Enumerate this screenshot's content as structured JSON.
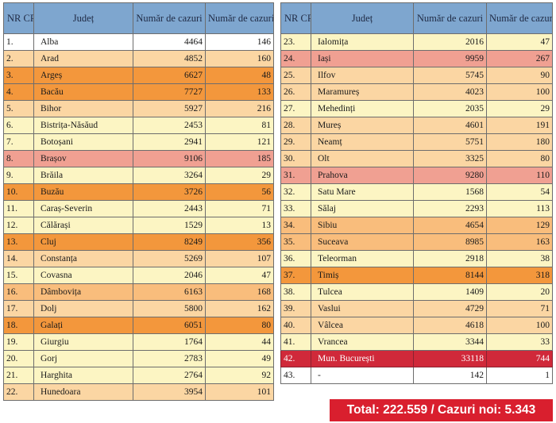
{
  "headers": {
    "nr": "NR CRT.",
    "judet": "Județ",
    "cazuri": "Număr de cazuri",
    "cazuri_noi": "Număr de cazuri noi"
  },
  "left_rows": [
    {
      "nr": "1.",
      "judet": "Alba",
      "cazuri": "4464",
      "noi": "146",
      "color": "peach"
    },
    {
      "nr": "2.",
      "judet": "Arad",
      "cazuri": "4852",
      "noi": "160",
      "color": "light-orange"
    },
    {
      "nr": "3.",
      "judet": "Argeș",
      "cazuri": "6627",
      "noi": "48",
      "color": "dark-orange"
    },
    {
      "nr": "4.",
      "judet": "Bacău",
      "cazuri": "7727",
      "noi": "133",
      "color": "dark-orange"
    },
    {
      "nr": "5.",
      "judet": "Bihor",
      "cazuri": "5927",
      "noi": "216",
      "color": "light-orange"
    },
    {
      "nr": "6.",
      "judet": "Bistrița-Năsăud",
      "cazuri": "2453",
      "noi": "81",
      "color": "pale-yellow"
    },
    {
      "nr": "7.",
      "judet": "Botoșani",
      "cazuri": "2941",
      "noi": "121",
      "color": "pale-yellow"
    },
    {
      "nr": "8.",
      "judet": "Brașov",
      "cazuri": "9106",
      "noi": "185",
      "color": "salmon"
    },
    {
      "nr": "9.",
      "judet": "Brăila",
      "cazuri": "3264",
      "noi": "29",
      "color": "pale-yellow"
    },
    {
      "nr": "10.",
      "judet": "Buzău",
      "cazuri": "3726",
      "noi": "56",
      "color": "dark-orange"
    },
    {
      "nr": "11.",
      "judet": "Caraș-Severin",
      "cazuri": "2443",
      "noi": "71",
      "color": "pale-yellow"
    },
    {
      "nr": "12.",
      "judet": "Călărași",
      "cazuri": "1529",
      "noi": "13",
      "color": "pale-yellow"
    },
    {
      "nr": "13.",
      "judet": "Cluj",
      "cazuri": "8249",
      "noi": "356",
      "color": "dark-orange"
    },
    {
      "nr": "14.",
      "judet": "Constanța",
      "cazuri": "5269",
      "noi": "107",
      "color": "light-orange"
    },
    {
      "nr": "15.",
      "judet": "Covasna",
      "cazuri": "2046",
      "noi": "47",
      "color": "pale-yellow"
    },
    {
      "nr": "16.",
      "judet": "Dâmbovița",
      "cazuri": "6163",
      "noi": "168",
      "color": "mid-orange"
    },
    {
      "nr": "17.",
      "judet": "Dolj",
      "cazuri": "5800",
      "noi": "162",
      "color": "light-orange"
    },
    {
      "nr": "18.",
      "judet": "Galați",
      "cazuri": "6051",
      "noi": "80",
      "color": "dark-orange"
    },
    {
      "nr": "19.",
      "judet": "Giurgiu",
      "cazuri": "1764",
      "noi": "44",
      "color": "pale-yellow"
    },
    {
      "nr": "20.",
      "judet": "Gorj",
      "cazuri": "2783",
      "noi": "49",
      "color": "pale-yellow"
    },
    {
      "nr": "21.",
      "judet": "Harghita",
      "cazuri": "2764",
      "noi": "92",
      "color": "pale-yellow"
    },
    {
      "nr": "22.",
      "judet": "Hunedoara",
      "cazuri": "3954",
      "noi": "101",
      "color": "light-orange"
    }
  ],
  "right_rows": [
    {
      "nr": "23.",
      "judet": "Ialomița",
      "cazuri": "2016",
      "noi": "47",
      "color": "pale-yellow"
    },
    {
      "nr": "24.",
      "judet": "Iași",
      "cazuri": "9959",
      "noi": "267",
      "color": "salmon"
    },
    {
      "nr": "25.",
      "judet": "Ilfov",
      "cazuri": "5745",
      "noi": "90",
      "color": "light-orange"
    },
    {
      "nr": "26.",
      "judet": "Maramureș",
      "cazuri": "4023",
      "noi": "100",
      "color": "light-orange"
    },
    {
      "nr": "27.",
      "judet": "Mehedinți",
      "cazuri": "2035",
      "noi": "29",
      "color": "pale-yellow"
    },
    {
      "nr": "28.",
      "judet": "Mureș",
      "cazuri": "4601",
      "noi": "191",
      "color": "light-orange"
    },
    {
      "nr": "29.",
      "judet": "Neamț",
      "cazuri": "5751",
      "noi": "180",
      "color": "light-orange"
    },
    {
      "nr": "30.",
      "judet": "Olt",
      "cazuri": "3325",
      "noi": "80",
      "color": "light-orange"
    },
    {
      "nr": "31.",
      "judet": "Prahova",
      "cazuri": "9280",
      "noi": "110",
      "color": "salmon"
    },
    {
      "nr": "32.",
      "judet": "Satu Mare",
      "cazuri": "1568",
      "noi": "54",
      "color": "pale-yellow"
    },
    {
      "nr": "33.",
      "judet": "Sălaj",
      "cazuri": "2293",
      "noi": "113",
      "color": "pale-yellow"
    },
    {
      "nr": "34.",
      "judet": "Sibiu",
      "cazuri": "4654",
      "noi": "129",
      "color": "mid-orange"
    },
    {
      "nr": "35.",
      "judet": "Suceava",
      "cazuri": "8985",
      "noi": "163",
      "color": "mid-orange"
    },
    {
      "nr": "36.",
      "judet": "Teleorman",
      "cazuri": "2918",
      "noi": "38",
      "color": "pale-yellow"
    },
    {
      "nr": "37.",
      "judet": "Timiș",
      "cazuri": "8144",
      "noi": "318",
      "color": "dark-orange"
    },
    {
      "nr": "38.",
      "judet": "Tulcea",
      "cazuri": "1409",
      "noi": "20",
      "color": "pale-yellow"
    },
    {
      "nr": "39.",
      "judet": "Vaslui",
      "cazuri": "4729",
      "noi": "71",
      "color": "light-orange"
    },
    {
      "nr": "40.",
      "judet": "Vâlcea",
      "cazuri": "4618",
      "noi": "100",
      "color": "light-orange"
    },
    {
      "nr": "41.",
      "judet": "Vrancea",
      "cazuri": "3344",
      "noi": "33",
      "color": "pale-yellow"
    },
    {
      "nr": "42.",
      "judet": "Mun. București",
      "cazuri": "33118",
      "noi": "744",
      "color": "red"
    },
    {
      "nr": "43.",
      "judet": "-",
      "cazuri": "142",
      "noi": "1",
      "color": "white"
    }
  ],
  "total_text": "Total: 222.559 / Cazuri noi: 5.343",
  "colors": {
    "header": "#7ea6cf",
    "pale-yellow": "#fcf5c3",
    "light-orange": "#fbd6a3",
    "mid-orange": "#f9bd7c",
    "dark-orange": "#f3973c",
    "salmon": "#f0a092",
    "red": "#d0293a",
    "total_box": "#d91f2e"
  }
}
